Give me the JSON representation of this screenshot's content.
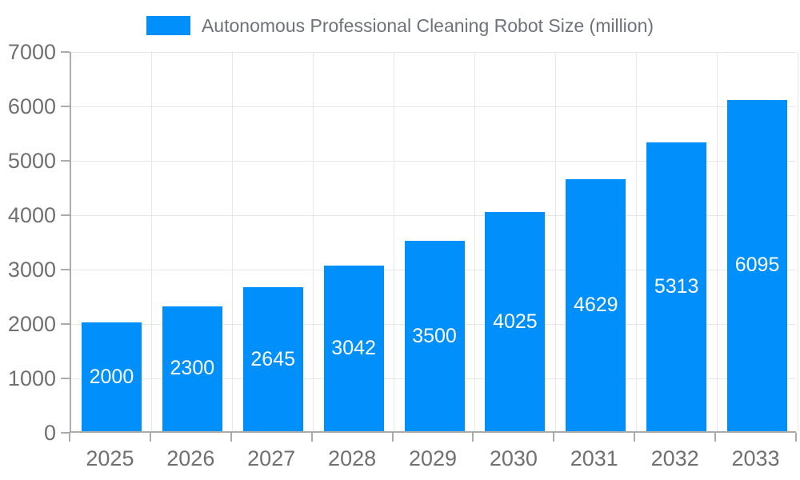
{
  "chart_data": {
    "type": "bar",
    "title": "Autonomous Professional Cleaning Robot Size (million)",
    "legend_entries": [
      "Autonomous Professional Cleaning Robot Size (million)"
    ],
    "legend_position": "top",
    "categories": [
      "2025",
      "2026",
      "2027",
      "2028",
      "2029",
      "2030",
      "2031",
      "2032",
      "2033"
    ],
    "values": [
      2000,
      2300,
      2645,
      3042,
      3500,
      4025,
      4629,
      5313,
      6095
    ],
    "data_labels": [
      "2000",
      "2300",
      "2645",
      "3042",
      "3500",
      "4025",
      "4629",
      "5313",
      "6095"
    ],
    "xlabel": "",
    "ylabel": "",
    "ylim": [
      0,
      7000
    ],
    "y_ticks": [
      0,
      1000,
      2000,
      3000,
      4000,
      5000,
      6000,
      7000
    ],
    "grid": true,
    "colors": {
      "bar": "#008FFB",
      "grid": "#E7E7E7",
      "axis": "#ABABAB",
      "tick_label": "#6F7072",
      "legend_text": "#6E737B",
      "data_label": "#FFFFFF",
      "background": "#FFFFFF"
    }
  }
}
